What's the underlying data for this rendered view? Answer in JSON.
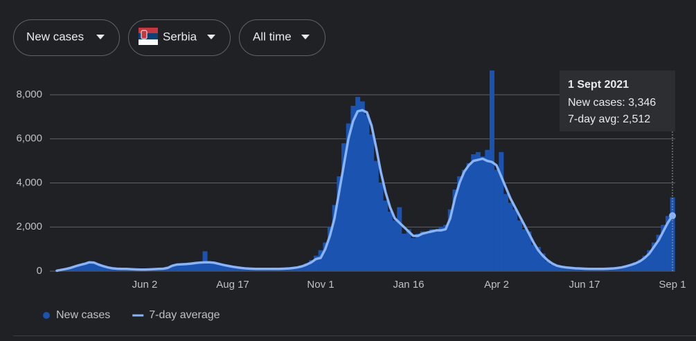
{
  "controls": [
    "New cases",
    "Serbia",
    "All time"
  ],
  "tooltip": {
    "title": "1 Sept 2021",
    "lines": [
      "New cases: 3,346",
      "7-day avg: 2,512"
    ]
  },
  "chart_data": {
    "type": "bar",
    "categories": [
      null,
      null,
      null,
      null,
      null,
      null,
      null,
      null,
      null,
      null,
      null,
      null,
      null,
      null,
      null,
      null,
      null,
      null,
      null,
      "Jun 2",
      null,
      null,
      null,
      null,
      null,
      null,
      null,
      null,
      null,
      null,
      null,
      null,
      null,
      null,
      null,
      null,
      null,
      null,
      "Aug 17",
      null,
      null,
      null,
      null,
      null,
      null,
      null,
      null,
      null,
      null,
      null,
      null,
      null,
      null,
      null,
      null,
      null,
      null,
      "Nov 1",
      null,
      null,
      null,
      null,
      null,
      null,
      null,
      null,
      null,
      null,
      null,
      null,
      null,
      null,
      null,
      null,
      null,
      null,
      "Jan 16",
      null,
      null,
      null,
      null,
      null,
      null,
      null,
      null,
      null,
      null,
      null,
      null,
      null,
      null,
      null,
      null,
      null,
      null,
      "Apr 2",
      null,
      null,
      null,
      null,
      null,
      null,
      null,
      null,
      null,
      null,
      null,
      null,
      null,
      null,
      null,
      null,
      null,
      null,
      "Jun 17",
      null,
      null,
      null,
      null,
      null,
      null,
      null,
      null,
      null,
      null,
      null,
      null,
      null,
      null,
      null,
      null,
      null,
      null,
      "Sep 1"
    ],
    "series": [
      {
        "name": "New cases",
        "type": "bar",
        "color": "#1a53b0",
        "values": [
          10,
          50,
          90,
          180,
          250,
          300,
          380,
          430,
          350,
          280,
          200,
          150,
          110,
          100,
          100,
          95,
          80,
          70,
          60,
          80,
          90,
          95,
          110,
          130,
          200,
          280,
          320,
          300,
          330,
          360,
          380,
          420,
          900,
          420,
          360,
          300,
          270,
          230,
          190,
          160,
          130,
          120,
          100,
          100,
          110,
          95,
          100,
          105,
          110,
          115,
          130,
          150,
          190,
          260,
          350,
          500,
          700,
          950,
          1300,
          2000,
          3000,
          4300,
          5800,
          6700,
          7500,
          7900,
          7700,
          7100,
          6200,
          5000,
          4000,
          3200,
          2700,
          2300,
          2900,
          1700,
          1900,
          1500,
          1700,
          1800,
          1700,
          1900,
          1800,
          2000,
          2100,
          2800,
          3700,
          4300,
          4600,
          4900,
          5300,
          5400,
          5200,
          5500,
          9100,
          4600,
          5400,
          3500,
          3100,
          2800,
          2300,
          1900,
          1800,
          1200,
          1100,
          800,
          450,
          300,
          220,
          180,
          160,
          140,
          120,
          110,
          100,
          90,
          110,
          100,
          95,
          120,
          130,
          150,
          190,
          250,
          310,
          400,
          520,
          700,
          950,
          1300,
          1650,
          2100,
          2500,
          3346
        ]
      },
      {
        "name": "7-day average",
        "type": "line",
        "color": "#8ab4f8",
        "values": [
          20,
          60,
          100,
          150,
          220,
          280,
          330,
          400,
          390,
          300,
          230,
          170,
          130,
          110,
          100,
          100,
          90,
          80,
          70,
          70,
          80,
          90,
          100,
          110,
          150,
          250,
          300,
          310,
          320,
          340,
          370,
          390,
          400,
          400,
          380,
          330,
          280,
          240,
          200,
          170,
          140,
          120,
          110,
          100,
          100,
          100,
          100,
          100,
          100,
          110,
          120,
          140,
          170,
          220,
          300,
          400,
          550,
          600,
          1000,
          1600,
          2400,
          3600,
          4800,
          6000,
          6800,
          7250,
          7300,
          7200,
          6600,
          5600,
          4500,
          3600,
          2900,
          2400,
          2200,
          2000,
          1800,
          1600,
          1600,
          1700,
          1750,
          1800,
          1850,
          1850,
          1900,
          2400,
          3300,
          4000,
          4500,
          4800,
          5000,
          5050,
          5100,
          5000,
          4950,
          4800,
          4300,
          3800,
          3300,
          2900,
          2500,
          2100,
          1700,
          1300,
          950,
          700,
          500,
          350,
          250,
          200,
          170,
          150,
          130,
          120,
          110,
          100,
          100,
          100,
          100,
          110,
          120,
          140,
          170,
          220,
          280,
          350,
          450,
          600,
          800,
          1100,
          1400,
          1800,
          2200,
          2512
        ]
      }
    ],
    "ylim": [
      0,
      9150
    ],
    "yticks": [
      0,
      {
        "value": 2000,
        "label": "2,000"
      },
      {
        "value": 4000,
        "label": "4,000"
      },
      {
        "value": 6000,
        "label": "6,000"
      },
      {
        "value": 8000,
        "label": "8,000"
      }
    ],
    "grid": true
  }
}
